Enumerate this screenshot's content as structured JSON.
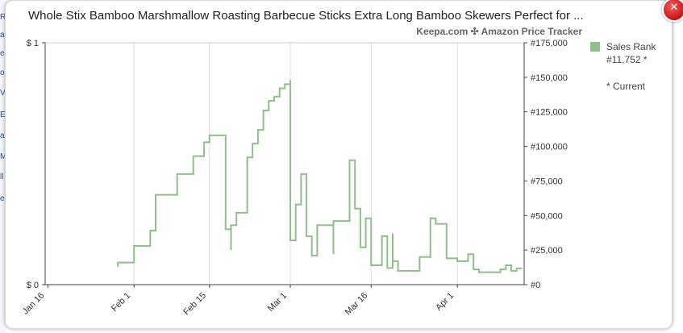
{
  "background_links": [
    "R",
    "a",
    "e",
    "o",
    "V",
    "E",
    "a",
    "M",
    "ll",
    "e"
  ],
  "header": {
    "title": "Whole Stix Bamboo Marshmallow Roasting Barbecue Sticks Extra Long Bamboo Skewers Perfect for ...",
    "subtitle": "Keepa.com ✣ Amazon Price Tracker",
    "close_icon": "close-icon"
  },
  "legend": {
    "series_label": "Sales Rank",
    "current_value": "#11,752 *",
    "footnote": "* Current"
  },
  "colors": {
    "sales_rank_line": "#8fbf8a",
    "grid": "#dddddd",
    "axis": "#444444"
  },
  "chart_data": {
    "type": "line",
    "title": "Whole Stix Bamboo Marshmallow Roasting Barbecue Sticks Extra Long Bamboo Skewers Perfect for ...",
    "xlabel": "",
    "ylabel": "",
    "x_ticks": [
      "Jan 16",
      "Feb 1",
      "Feb 15",
      "Mar 1",
      "Mar 16",
      "Apr 1"
    ],
    "left_axis": {
      "ticks": [
        "$ 1",
        "$ 0"
      ],
      "range": [
        0,
        1
      ]
    },
    "right_axis": {
      "ticks": [
        "#0",
        "#25,000",
        "#50,000",
        "#75,000",
        "#100,000",
        "#125,000",
        "#150,000",
        "#175,000"
      ],
      "range": [
        0,
        175000
      ]
    },
    "grid": true,
    "legend_position": "right",
    "series": [
      {
        "name": "Sales Rank",
        "points": [
          [
            "Jan 29",
            13000
          ],
          [
            "Jan 29",
            16000
          ],
          [
            "Feb 1",
            16000
          ],
          [
            "Feb 1",
            28000
          ],
          [
            "Feb 4",
            28000
          ],
          [
            "Feb 4",
            39000
          ],
          [
            "Feb 5",
            39000
          ],
          [
            "Feb 5",
            65000
          ],
          [
            "Feb 9",
            65000
          ],
          [
            "Feb 9",
            80000
          ],
          [
            "Feb 12",
            80000
          ],
          [
            "Feb 12",
            93000
          ],
          [
            "Feb 14",
            93000
          ],
          [
            "Feb 14",
            103000
          ],
          [
            "Feb 15",
            103000
          ],
          [
            "Feb 15",
            108000
          ],
          [
            "Feb 18",
            108000
          ],
          [
            "Feb 18",
            40000
          ],
          [
            "Feb 19",
            40000
          ],
          [
            "Feb 19",
            25000
          ],
          [
            "Feb 19",
            25000
          ],
          [
            "Feb 19",
            43000
          ],
          [
            "Feb 20",
            43000
          ],
          [
            "Feb 20",
            52000
          ],
          [
            "Feb 22",
            52000
          ],
          [
            "Feb 22",
            78000
          ],
          [
            "Feb 22",
            78000
          ],
          [
            "Feb 22",
            92000
          ],
          [
            "Feb 23",
            92000
          ],
          [
            "Feb 23",
            102000
          ],
          [
            "Feb 24",
            102000
          ],
          [
            "Feb 24",
            112000
          ],
          [
            "Feb 25",
            112000
          ],
          [
            "Feb 25",
            120000
          ],
          [
            "Feb 25",
            120000
          ],
          [
            "Feb 25",
            126000
          ],
          [
            "Feb 26",
            126000
          ],
          [
            "Feb 26",
            130000
          ],
          [
            "Feb 26",
            130000
          ],
          [
            "Feb 26",
            133000
          ],
          [
            "Feb 27",
            133000
          ],
          [
            "Feb 27",
            136000
          ],
          [
            "Feb 28",
            136000
          ],
          [
            "Feb 28",
            142000
          ],
          [
            "Feb 29",
            142000
          ],
          [
            "Feb 29",
            145000
          ],
          [
            "Mar 1",
            145000
          ],
          [
            "Mar 1",
            148000
          ],
          [
            "Mar 1",
            148000
          ],
          [
            "Mar 1",
            32000
          ],
          [
            "Mar 2",
            32000
          ],
          [
            "Mar 2",
            58000
          ],
          [
            "Mar 3",
            58000
          ],
          [
            "Mar 3",
            80000
          ],
          [
            "Mar 4",
            80000
          ],
          [
            "Mar 4",
            35000
          ],
          [
            "Mar 5",
            35000
          ],
          [
            "Mar 5",
            21000
          ],
          [
            "Mar 6",
            21000
          ],
          [
            "Mar 6",
            40000
          ],
          [
            "Mar 6",
            40000
          ],
          [
            "Mar 6",
            43000
          ],
          [
            "Mar 9",
            43000
          ],
          [
            "Mar 9",
            22000
          ],
          [
            "Mar 9",
            22000
          ],
          [
            "Mar 9",
            46000
          ],
          [
            "Mar 12",
            46000
          ],
          [
            "Mar 12",
            73000
          ],
          [
            "Mar 12",
            73000
          ],
          [
            "Mar 12",
            90000
          ],
          [
            "Mar 13",
            90000
          ],
          [
            "Mar 13",
            55000
          ],
          [
            "Mar 14",
            55000
          ],
          [
            "Mar 14",
            27000
          ],
          [
            "Mar 15",
            27000
          ],
          [
            "Mar 15",
            37000
          ],
          [
            "Mar 15",
            37000
          ],
          [
            "Mar 15",
            48000
          ],
          [
            "Mar 16",
            48000
          ],
          [
            "Mar 16",
            14000
          ],
          [
            "Mar 18",
            14000
          ],
          [
            "Mar 18",
            35000
          ],
          [
            "Mar 19",
            35000
          ],
          [
            "Mar 19",
            12000
          ],
          [
            "Mar 20",
            12000
          ],
          [
            "Mar 20",
            37000
          ],
          [
            "Mar 20",
            37000
          ],
          [
            "Mar 20",
            17000
          ],
          [
            "Mar 21",
            17000
          ],
          [
            "Mar 21",
            10000
          ],
          [
            "Mar 25",
            10000
          ],
          [
            "Mar 25",
            20000
          ],
          [
            "Mar 27",
            20000
          ],
          [
            "Mar 27",
            48000
          ],
          [
            "Mar 28",
            48000
          ],
          [
            "Mar 28",
            44000
          ],
          [
            "Mar 30",
            44000
          ],
          [
            "Mar 30",
            19000
          ],
          [
            "Apr 1",
            19000
          ],
          [
            "Apr 1",
            17000
          ],
          [
            "Apr 3",
            17000
          ],
          [
            "Apr 3",
            22000
          ],
          [
            "Apr 4",
            22000
          ],
          [
            "Apr 4",
            11000
          ],
          [
            "Apr 5",
            11000
          ],
          [
            "Apr 5",
            9000
          ],
          [
            "Apr 9",
            9000
          ],
          [
            "Apr 9",
            11000
          ],
          [
            "Apr 10",
            11000
          ],
          [
            "Apr 10",
            14000
          ],
          [
            "Apr 11",
            14000
          ],
          [
            "Apr 11",
            10000
          ],
          [
            "Apr 12",
            10000
          ],
          [
            "Apr 12",
            11752
          ],
          [
            "Apr 13",
            11752
          ]
        ]
      }
    ]
  }
}
